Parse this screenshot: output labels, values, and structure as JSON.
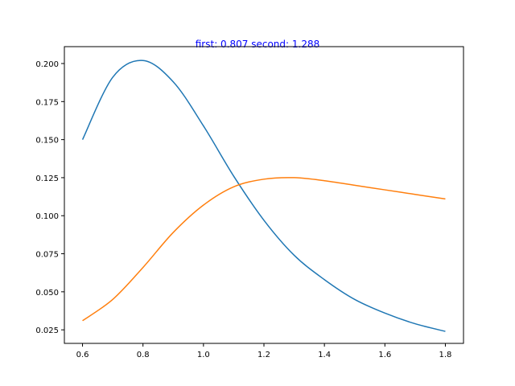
{
  "chart_data": {
    "type": "line",
    "title": "first: 0.807 second: 1.288",
    "title_color": "#0000ff",
    "xlabel": "",
    "ylabel": "",
    "xlim": [
      0.54,
      1.86
    ],
    "ylim": [
      0.0161,
      0.2111
    ],
    "x_ticks": [
      0.6,
      0.8,
      1.0,
      1.2,
      1.4,
      1.6,
      1.8
    ],
    "x_tick_labels": [
      "0.6",
      "0.8",
      "1.0",
      "1.2",
      "1.4",
      "1.6",
      "1.8"
    ],
    "y_ticks": [
      0.025,
      0.05,
      0.075,
      0.1,
      0.125,
      0.15,
      0.175,
      0.2
    ],
    "y_tick_labels": [
      "0.025",
      "0.050",
      "0.075",
      "0.100",
      "0.125",
      "0.150",
      "0.175",
      "0.200"
    ],
    "grid": false,
    "x": [
      0.6,
      0.7,
      0.8,
      0.9,
      1.0,
      1.1,
      1.2,
      1.3,
      1.4,
      1.5,
      1.6,
      1.7,
      1.8
    ],
    "series": [
      {
        "color": "#1f77b4",
        "values": [
          0.15,
          0.191,
          0.202,
          0.188,
          0.159,
          0.126,
          0.097,
          0.074,
          0.058,
          0.045,
          0.036,
          0.029,
          0.024
        ]
      },
      {
        "color": "#ff7f0e",
        "values": [
          0.031,
          0.045,
          0.066,
          0.089,
          0.107,
          0.119,
          0.124,
          0.125,
          0.123,
          0.12,
          0.117,
          0.114,
          0.111
        ]
      }
    ]
  }
}
